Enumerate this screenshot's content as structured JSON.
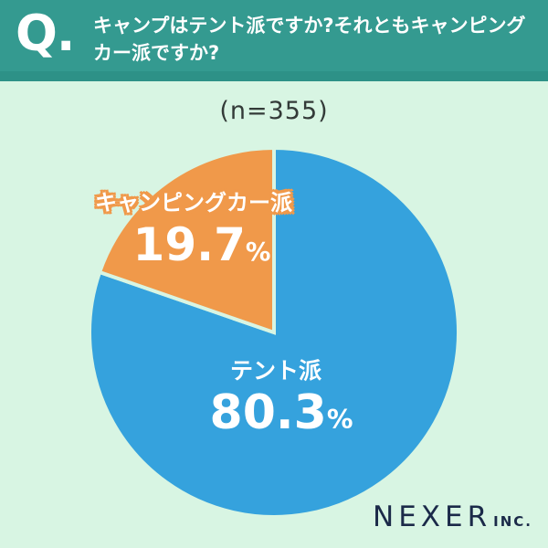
{
  "header": {
    "q_prefix": "Q.",
    "question_line1": "キャンプはテント派ですか?それともキャンピング",
    "question_line2": "カー派ですか?"
  },
  "survey": {
    "sample_size_label": "(n=355)"
  },
  "chart_data": {
    "type": "pie",
    "title": "キャンプはテント派ですか?それともキャンピングカー派ですか?",
    "sample_size": 355,
    "start_angle_deg": 0,
    "direction": "clockwise",
    "legend_position": "inside",
    "slices": [
      {
        "label": "テント派",
        "value": 80.3,
        "value_text": "80.3",
        "unit": "%",
        "color": "#35A2DD",
        "label_color": "#FFFFFF"
      },
      {
        "label": "キャンピングカー派",
        "value": 19.7,
        "value_text": "19.7",
        "unit": "%",
        "color": "#F0994A",
        "label_color": "#FFFFFF",
        "label_outline": "#F0994A"
      }
    ]
  },
  "footer": {
    "brand": "NEXER",
    "brand_suffix": "INC."
  },
  "colors": {
    "header_bg": "#349A90",
    "header_bg_dark": "#2D9187",
    "background": "#D8F5E3",
    "question_text": "#FFFFFF",
    "sample_text": "#333A38",
    "brand_text": "#1B2A49",
    "slice_tent": "#35A2DD",
    "slice_camper": "#F0994A"
  }
}
